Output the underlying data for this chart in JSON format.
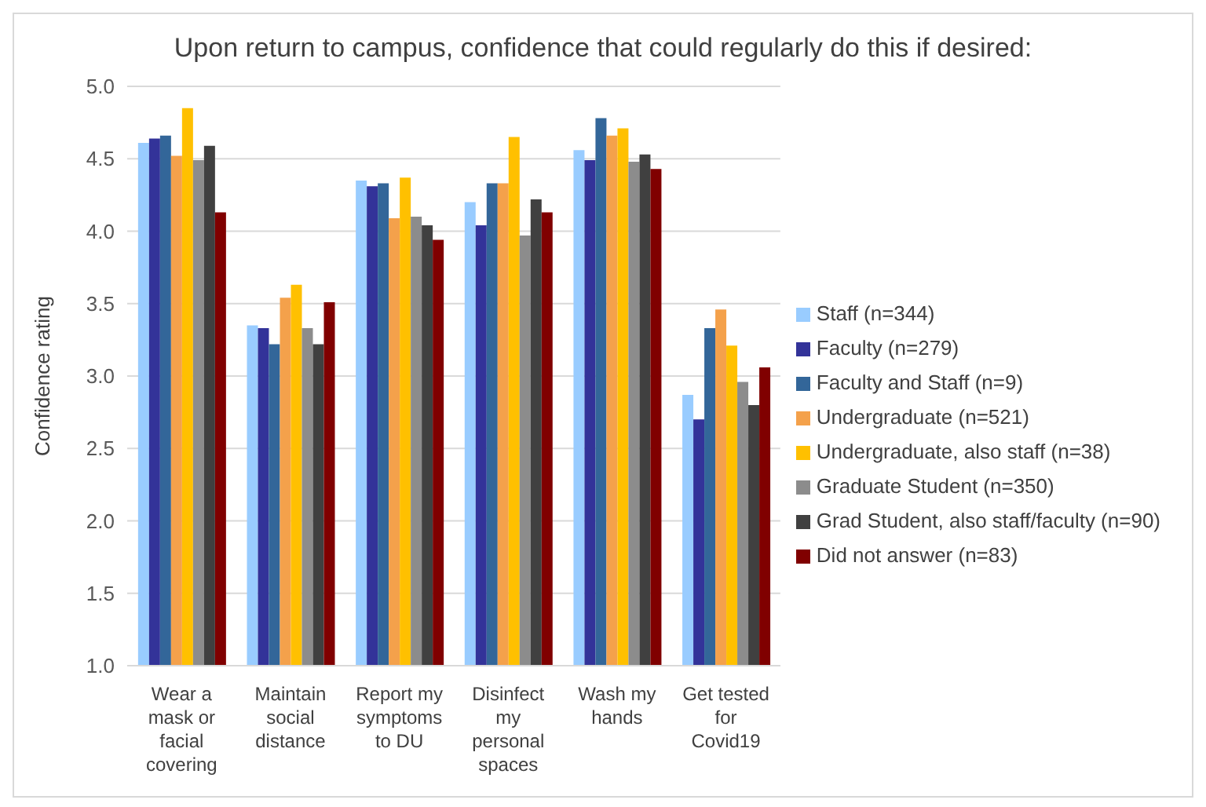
{
  "chart_data": {
    "type": "bar",
    "title": "Upon return to campus, confidence that could regularly do this if desired:",
    "ylabel": "Confidence rating",
    "categories": [
      "Wear a mask or facial covering",
      "Maintain social distance",
      "Report my symptoms to DU",
      "Disinfect my personal spaces",
      "Wash my hands",
      "Get tested for Covid19"
    ],
    "series": [
      {
        "name": "Staff (n=344)",
        "color": "#99ccff",
        "values": [
          4.61,
          3.35,
          4.35,
          4.2,
          4.56,
          2.87
        ]
      },
      {
        "name": "Faculty (n=279)",
        "color": "#333399",
        "values": [
          4.64,
          3.33,
          4.31,
          4.04,
          4.49,
          2.7
        ]
      },
      {
        "name": "Faculty and Staff (n=9)",
        "color": "#336699",
        "values": [
          4.66,
          3.22,
          4.33,
          4.33,
          4.78,
          3.33
        ]
      },
      {
        "name": "Undergraduate (n=521)",
        "color": "#f4a14b",
        "values": [
          4.52,
          3.54,
          4.09,
          4.33,
          4.66,
          3.46
        ]
      },
      {
        "name": "Undergraduate, also staff (n=38)",
        "color": "#ffc000",
        "values": [
          4.85,
          3.63,
          4.37,
          4.65,
          4.71,
          3.21
        ]
      },
      {
        "name": "Graduate Student (n=350)",
        "color": "#8c8c8c",
        "values": [
          4.49,
          3.33,
          4.1,
          3.97,
          4.48,
          2.96
        ]
      },
      {
        "name": "Grad Student, also staff/faculty (n=90)",
        "color": "#404040",
        "values": [
          4.59,
          3.22,
          4.04,
          4.22,
          4.53,
          2.8
        ]
      },
      {
        "name": "Did not answer (n=83)",
        "color": "#800000",
        "values": [
          4.13,
          3.51,
          3.94,
          4.13,
          4.43,
          3.06
        ]
      }
    ],
    "ylim": [
      1,
      5
    ],
    "yticks": [
      {
        "value": 1,
        "label": "1.0"
      },
      {
        "value": 1.5,
        "label": "1.5"
      },
      {
        "value": 2,
        "label": "2.0"
      },
      {
        "value": 2.5,
        "label": "2.5"
      },
      {
        "value": 3,
        "label": "3.0"
      },
      {
        "value": 3.5,
        "label": "3.5"
      },
      {
        "value": 4,
        "label": "4.0"
      },
      {
        "value": 4.5,
        "label": "4.5"
      },
      {
        "value": 5,
        "label": "5.0"
      }
    ],
    "grid": "y",
    "legend": "right"
  }
}
